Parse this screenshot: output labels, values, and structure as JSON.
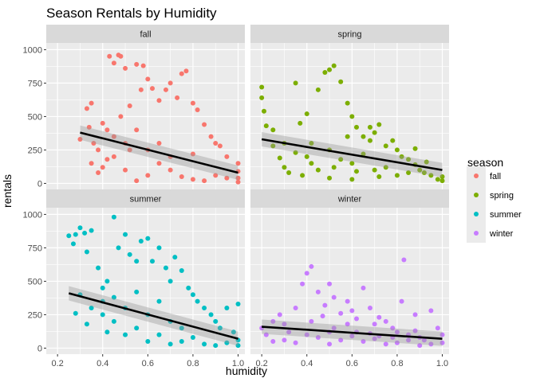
{
  "chart_data": {
    "type": "scatter",
    "title": "Season Rentals by Humidity",
    "xlabel": "humidity",
    "ylabel": "rentals",
    "xlim": [
      0.15,
      1.03
    ],
    "ylim": [
      -45,
      1050
    ],
    "x_ticks": [
      0.2,
      0.4,
      0.6,
      0.8,
      1.0
    ],
    "x_tick_labels": [
      "0.2",
      "0.4",
      "0.6",
      "0.8",
      "1.0"
    ],
    "y_ticks": [
      0,
      250,
      500,
      750,
      1000
    ],
    "y_tick_labels": [
      "0",
      "250",
      "500",
      "750",
      "1000"
    ],
    "grid": true,
    "legend": {
      "title": "season",
      "position": "right"
    },
    "panels": [
      {
        "name": "fall",
        "color": "#F8766D",
        "trend": {
          "x": [
            0.3,
            1.0
          ],
          "y": [
            380,
            80
          ]
        },
        "points": [
          [
            0.3,
            330
          ],
          [
            0.33,
            560
          ],
          [
            0.35,
            600
          ],
          [
            0.36,
            300
          ],
          [
            0.38,
            250
          ],
          [
            0.4,
            450
          ],
          [
            0.42,
            400
          ],
          [
            0.43,
            950
          ],
          [
            0.45,
            900
          ],
          [
            0.47,
            960
          ],
          [
            0.48,
            950
          ],
          [
            0.5,
            860
          ],
          [
            0.52,
            580
          ],
          [
            0.55,
            890
          ],
          [
            0.57,
            700
          ],
          [
            0.58,
            880
          ],
          [
            0.6,
            780
          ],
          [
            0.62,
            710
          ],
          [
            0.65,
            620
          ],
          [
            0.68,
            700
          ],
          [
            0.7,
            750
          ],
          [
            0.73,
            640
          ],
          [
            0.75,
            820
          ],
          [
            0.77,
            840
          ],
          [
            0.8,
            600
          ],
          [
            0.82,
            550
          ],
          [
            0.85,
            440
          ],
          [
            0.88,
            350
          ],
          [
            0.9,
            300
          ],
          [
            0.92,
            280
          ],
          [
            0.95,
            200
          ],
          [
            1.0,
            150
          ],
          [
            1.0,
            90
          ],
          [
            1.0,
            40
          ],
          [
            1.0,
            10
          ],
          [
            0.35,
            150
          ],
          [
            0.4,
            120
          ],
          [
            0.45,
            200
          ],
          [
            0.5,
            300
          ],
          [
            0.55,
            400
          ],
          [
            0.6,
            250
          ],
          [
            0.65,
            150
          ],
          [
            0.7,
            100
          ],
          [
            0.75,
            50
          ],
          [
            0.8,
            30
          ],
          [
            0.85,
            20
          ],
          [
            0.9,
            60
          ],
          [
            0.95,
            40
          ],
          [
            0.5,
            100
          ],
          [
            0.6,
            60
          ],
          [
            0.7,
            200
          ],
          [
            0.8,
            220
          ],
          [
            0.55,
            20
          ],
          [
            0.65,
            300
          ],
          [
            0.45,
            350
          ],
          [
            0.42,
            180
          ],
          [
            0.38,
            80
          ],
          [
            0.34,
            420
          ],
          [
            0.48,
            500
          ],
          [
            0.52,
            250
          ]
        ]
      },
      {
        "name": "spring",
        "color": "#7CAE00",
        "trend": {
          "x": [
            0.2,
            1.0
          ],
          "y": [
            330,
            100
          ]
        },
        "points": [
          [
            0.2,
            720
          ],
          [
            0.2,
            640
          ],
          [
            0.21,
            540
          ],
          [
            0.22,
            430
          ],
          [
            0.25,
            280
          ],
          [
            0.28,
            190
          ],
          [
            0.3,
            120
          ],
          [
            0.32,
            80
          ],
          [
            0.35,
            750
          ],
          [
            0.37,
            450
          ],
          [
            0.4,
            520
          ],
          [
            0.42,
            300
          ],
          [
            0.45,
            700
          ],
          [
            0.48,
            830
          ],
          [
            0.5,
            850
          ],
          [
            0.52,
            880
          ],
          [
            0.55,
            760
          ],
          [
            0.58,
            600
          ],
          [
            0.6,
            500
          ],
          [
            0.62,
            420
          ],
          [
            0.65,
            350
          ],
          [
            0.68,
            320
          ],
          [
            0.7,
            380
          ],
          [
            0.72,
            440
          ],
          [
            0.75,
            280
          ],
          [
            0.78,
            320
          ],
          [
            0.8,
            250
          ],
          [
            0.82,
            200
          ],
          [
            0.85,
            180
          ],
          [
            0.88,
            140
          ],
          [
            0.9,
            100
          ],
          [
            0.92,
            80
          ],
          [
            0.95,
            60
          ],
          [
            0.98,
            30
          ],
          [
            1.0,
            50
          ],
          [
            1.0,
            20
          ],
          [
            0.3,
            300
          ],
          [
            0.4,
            200
          ],
          [
            0.5,
            250
          ],
          [
            0.6,
            150
          ],
          [
            0.7,
            100
          ],
          [
            0.8,
            60
          ],
          [
            0.5,
            40
          ],
          [
            0.6,
            30
          ],
          [
            0.45,
            100
          ],
          [
            0.55,
            180
          ],
          [
            0.65,
            220
          ],
          [
            0.75,
            120
          ],
          [
            0.85,
            80
          ],
          [
            0.35,
            230
          ],
          [
            0.25,
            400
          ],
          [
            0.42,
            150
          ],
          [
            0.58,
            350
          ],
          [
            0.68,
            420
          ],
          [
            0.88,
            260
          ],
          [
            0.93,
            160
          ],
          [
            0.38,
            60
          ],
          [
            0.52,
            120
          ],
          [
            0.72,
            50
          ],
          [
            0.62,
            90
          ]
        ]
      },
      {
        "name": "summer",
        "color": "#00BFC4",
        "trend": {
          "x": [
            0.25,
            1.0
          ],
          "y": [
            410,
            70
          ]
        },
        "points": [
          [
            0.25,
            840
          ],
          [
            0.27,
            780
          ],
          [
            0.28,
            850
          ],
          [
            0.3,
            900
          ],
          [
            0.32,
            860
          ],
          [
            0.33,
            720
          ],
          [
            0.35,
            880
          ],
          [
            0.38,
            600
          ],
          [
            0.4,
            450
          ],
          [
            0.42,
            500
          ],
          [
            0.45,
            980
          ],
          [
            0.47,
            750
          ],
          [
            0.5,
            850
          ],
          [
            0.52,
            700
          ],
          [
            0.55,
            650
          ],
          [
            0.57,
            800
          ],
          [
            0.6,
            820
          ],
          [
            0.62,
            650
          ],
          [
            0.65,
            750
          ],
          [
            0.68,
            600
          ],
          [
            0.7,
            500
          ],
          [
            0.72,
            680
          ],
          [
            0.75,
            580
          ],
          [
            0.78,
            450
          ],
          [
            0.8,
            400
          ],
          [
            0.82,
            350
          ],
          [
            0.85,
            300
          ],
          [
            0.88,
            250
          ],
          [
            0.9,
            200
          ],
          [
            0.92,
            150
          ],
          [
            0.95,
            300
          ],
          [
            0.98,
            120
          ],
          [
            1.0,
            330
          ],
          [
            1.0,
            60
          ],
          [
            1.0,
            20
          ],
          [
            0.3,
            400
          ],
          [
            0.35,
            300
          ],
          [
            0.4,
            250
          ],
          [
            0.45,
            200
          ],
          [
            0.5,
            300
          ],
          [
            0.55,
            150
          ],
          [
            0.6,
            250
          ],
          [
            0.65,
            100
          ],
          [
            0.7,
            200
          ],
          [
            0.75,
            50
          ],
          [
            0.8,
            80
          ],
          [
            0.85,
            30
          ],
          [
            0.9,
            20
          ],
          [
            0.95,
            40
          ],
          [
            0.5,
            100
          ],
          [
            0.6,
            50
          ],
          [
            0.7,
            30
          ],
          [
            0.4,
            350
          ],
          [
            0.45,
            380
          ],
          [
            0.55,
            420
          ],
          [
            0.65,
            350
          ],
          [
            0.75,
            150
          ],
          [
            0.28,
            260
          ],
          [
            0.33,
            180
          ],
          [
            0.42,
            120
          ]
        ]
      },
      {
        "name": "winter",
        "color": "#C77CFF",
        "trend": {
          "x": [
            0.2,
            1.0
          ],
          "y": [
            160,
            70
          ]
        },
        "points": [
          [
            0.2,
            150
          ],
          [
            0.22,
            100
          ],
          [
            0.25,
            200
          ],
          [
            0.28,
            250
          ],
          [
            0.3,
            180
          ],
          [
            0.32,
            120
          ],
          [
            0.35,
            300
          ],
          [
            0.38,
            480
          ],
          [
            0.4,
            560
          ],
          [
            0.42,
            610
          ],
          [
            0.45,
            420
          ],
          [
            0.48,
            320
          ],
          [
            0.5,
            480
          ],
          [
            0.52,
            380
          ],
          [
            0.55,
            260
          ],
          [
            0.58,
            350
          ],
          [
            0.6,
            280
          ],
          [
            0.62,
            220
          ],
          [
            0.65,
            450
          ],
          [
            0.68,
            300
          ],
          [
            0.7,
            180
          ],
          [
            0.72,
            230
          ],
          [
            0.75,
            200
          ],
          [
            0.78,
            150
          ],
          [
            0.8,
            120
          ],
          [
            0.82,
            350
          ],
          [
            0.83,
            660
          ],
          [
            0.85,
            100
          ],
          [
            0.88,
            250
          ],
          [
            0.9,
            80
          ],
          [
            0.92,
            60
          ],
          [
            0.95,
            280
          ],
          [
            0.98,
            150
          ],
          [
            1.0,
            100
          ],
          [
            1.0,
            40
          ],
          [
            0.3,
            60
          ],
          [
            0.4,
            100
          ],
          [
            0.45,
            80
          ],
          [
            0.5,
            120
          ],
          [
            0.55,
            60
          ],
          [
            0.6,
            90
          ],
          [
            0.65,
            50
          ],
          [
            0.7,
            70
          ],
          [
            0.75,
            30
          ],
          [
            0.8,
            40
          ],
          [
            0.85,
            60
          ],
          [
            0.9,
            20
          ],
          [
            0.95,
            30
          ],
          [
            0.35,
            40
          ],
          [
            0.42,
            200
          ],
          [
            0.52,
            150
          ],
          [
            0.62,
            120
          ],
          [
            0.72,
            90
          ],
          [
            0.5,
            30
          ],
          [
            0.25,
            50
          ],
          [
            0.68,
            110
          ],
          [
            0.78,
            80
          ],
          [
            0.88,
            130
          ],
          [
            0.58,
            180
          ],
          [
            0.47,
            240
          ]
        ]
      }
    ]
  }
}
